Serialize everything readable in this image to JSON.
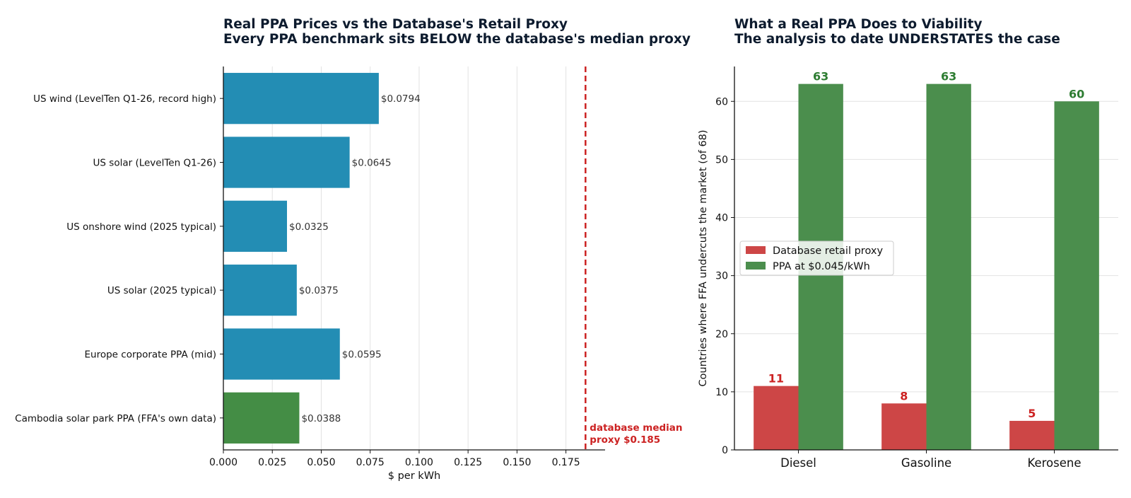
{
  "chart_data": [
    {
      "type": "bar",
      "orientation": "horizontal",
      "title": "Real PPA Prices vs the Database's Retail Proxy",
      "subtitle": "Every PPA benchmark sits BELOW the database's median proxy",
      "xlabel": "$ per kWh",
      "ylabel": "",
      "xlim": [
        0,
        0.195
      ],
      "xticks": [
        "0.000",
        "0.025",
        "0.050",
        "0.075",
        "0.100",
        "0.125",
        "0.150",
        "0.175"
      ],
      "grid": "vertical",
      "categories": [
        "US wind (LevelTen Q1-26, record high)",
        "US solar (LevelTen Q1-26)",
        "US onshore wind (2025 typical)",
        "US solar (2025 typical)",
        "Europe corporate PPA (mid)",
        "Cambodia solar park PPA (FFA's own data)"
      ],
      "values": [
        0.0794,
        0.0645,
        0.0325,
        0.0375,
        0.0595,
        0.0388
      ],
      "value_labels": [
        "$0.0794",
        "$0.0645",
        "$0.0325",
        "$0.0375",
        "$0.0595",
        "$0.0388"
      ],
      "bar_colors": [
        "#238db4",
        "#238db4",
        "#238db4",
        "#238db4",
        "#238db4",
        "#448d45"
      ],
      "reference_line": {
        "value": 0.185,
        "label_line1": "database median",
        "label_line2": "proxy $0.185",
        "color": "#cc2222",
        "style": "dashed"
      }
    },
    {
      "type": "bar",
      "orientation": "vertical",
      "title": "What a Real PPA Does to Viability",
      "subtitle": "The analysis to date UNDERSTATES the case",
      "xlabel": "",
      "ylabel": "Countries where FFA undercuts the market (of 68)",
      "ylim": [
        0,
        66
      ],
      "yticks": [
        "0",
        "10",
        "20",
        "30",
        "40",
        "50",
        "60"
      ],
      "grid": "horizontal",
      "legend_position": "center-left",
      "categories": [
        "Diesel",
        "Gasoline",
        "Kerosene"
      ],
      "series": [
        {
          "name": "Database retail proxy",
          "color": "#cd4646",
          "label_color": "#cc2222",
          "values": [
            11,
            8,
            5
          ]
        },
        {
          "name": "PPA at $0.045/kWh",
          "color": "#4b8e4d",
          "label_color": "#2e7d32",
          "values": [
            63,
            63,
            60
          ]
        }
      ]
    }
  ]
}
